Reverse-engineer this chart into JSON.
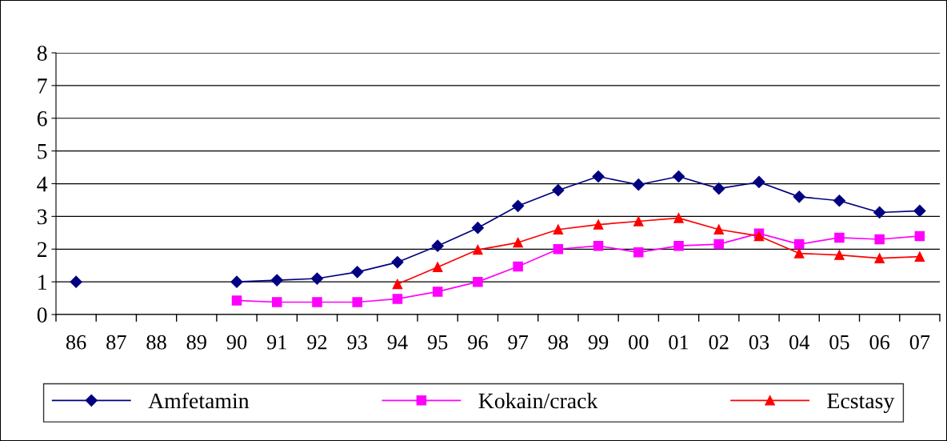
{
  "chart_data": {
    "type": "line",
    "categories": [
      "86",
      "87",
      "88",
      "89",
      "90",
      "91",
      "92",
      "93",
      "94",
      "95",
      "96",
      "97",
      "98",
      "99",
      "00",
      "01",
      "02",
      "03",
      "04",
      "05",
      "06",
      "07"
    ],
    "series": [
      {
        "name": "Amfetamin",
        "color": "#000080",
        "marker": "diamond",
        "values": [
          1.0,
          null,
          null,
          null,
          1.0,
          1.05,
          1.1,
          1.3,
          1.6,
          2.1,
          2.65,
          3.32,
          3.8,
          4.22,
          3.97,
          4.22,
          3.85,
          4.05,
          3.6,
          3.48,
          3.12,
          3.17
        ]
      },
      {
        "name": "Kokain/crack",
        "color": "#ff00ff",
        "marker": "square",
        "values": [
          null,
          null,
          null,
          null,
          0.43,
          0.38,
          0.38,
          0.38,
          0.48,
          0.7,
          1.0,
          1.47,
          2.0,
          2.1,
          1.9,
          2.1,
          2.15,
          2.48,
          2.15,
          2.35,
          2.3,
          2.4
        ]
      },
      {
        "name": "Ecstasy",
        "color": "#ff0000",
        "marker": "triangle",
        "values": [
          null,
          null,
          null,
          null,
          null,
          null,
          null,
          null,
          0.93,
          1.45,
          1.98,
          2.2,
          2.6,
          2.75,
          2.85,
          2.95,
          2.6,
          2.4,
          1.87,
          1.82,
          1.72,
          1.77
        ]
      }
    ],
    "ylim": [
      0,
      8
    ],
    "yticks": [
      0,
      1,
      2,
      3,
      4,
      5,
      6,
      7,
      8
    ],
    "grid": "y",
    "legend": "bottom",
    "line_style": "solid"
  }
}
